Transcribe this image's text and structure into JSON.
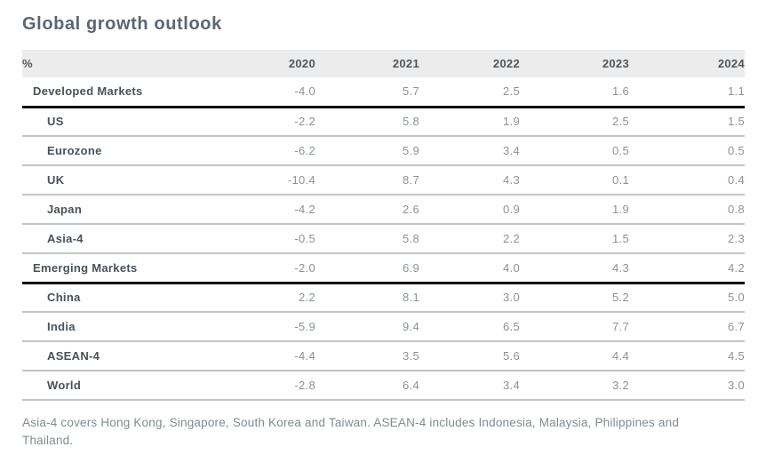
{
  "chart_data": {
    "type": "table",
    "title": "Global growth outlook",
    "unit": "%",
    "columns": [
      "2020",
      "2021",
      "2022",
      "2023",
      "2024"
    ],
    "rows": [
      {
        "label": "Developed Markets",
        "level": "section",
        "values": [
          "-4.0",
          "5.7",
          "2.5",
          "1.6",
          "1.1"
        ]
      },
      {
        "label": "US",
        "level": "detail",
        "values": [
          "-2.2",
          "5.8",
          "1.9",
          "2.5",
          "1.5"
        ]
      },
      {
        "label": "Eurozone",
        "level": "detail",
        "values": [
          "-6.2",
          "5.9",
          "3.4",
          "0.5",
          "0.5"
        ]
      },
      {
        "label": "UK",
        "level": "detail",
        "values": [
          "-10.4",
          "8.7",
          "4.3",
          "0.1",
          "0.4"
        ]
      },
      {
        "label": "Japan",
        "level": "detail",
        "values": [
          "-4.2",
          "2.6",
          "0.9",
          "1.9",
          "0.8"
        ]
      },
      {
        "label": "Asia-4",
        "level": "detail",
        "values": [
          "-0.5",
          "5.8",
          "2.2",
          "1.5",
          "2.3"
        ]
      },
      {
        "label": "Emerging Markets",
        "level": "section",
        "values": [
          "-2.0",
          "6.9",
          "4.0",
          "4.3",
          "4.2"
        ]
      },
      {
        "label": "China",
        "level": "detail",
        "values": [
          "2.2",
          "8.1",
          "3.0",
          "5.2",
          "5.0"
        ]
      },
      {
        "label": "India",
        "level": "detail",
        "values": [
          "-5.9",
          "9.4",
          "6.5",
          "7.7",
          "6.7"
        ]
      },
      {
        "label": "ASEAN-4",
        "level": "detail",
        "values": [
          "-4.4",
          "3.5",
          "5.6",
          "4.4",
          "4.5"
        ]
      },
      {
        "label": "World",
        "level": "detail",
        "values": [
          "-2.8",
          "6.4",
          "3.4",
          "3.2",
          "3.0"
        ]
      }
    ],
    "footnote": "Asia-4 covers Hong Kong, Singapore, South Korea and Taiwan. ASEAN-4 includes Indonesia, Malaysia, Philippines and Thailand.",
    "layout": {
      "grid": "horizontal-separators",
      "section_divider": "thick-black",
      "header_background": true
    },
    "colors": {
      "title": "#5b6770",
      "header_bg": "#ececec",
      "header_text": "#4d575f",
      "row_label": "#47525b",
      "value_text": "#8a9399",
      "separator": "#c4c4c4",
      "section_divider": "#0a0a0a",
      "footnote_text": "#828b91"
    }
  }
}
